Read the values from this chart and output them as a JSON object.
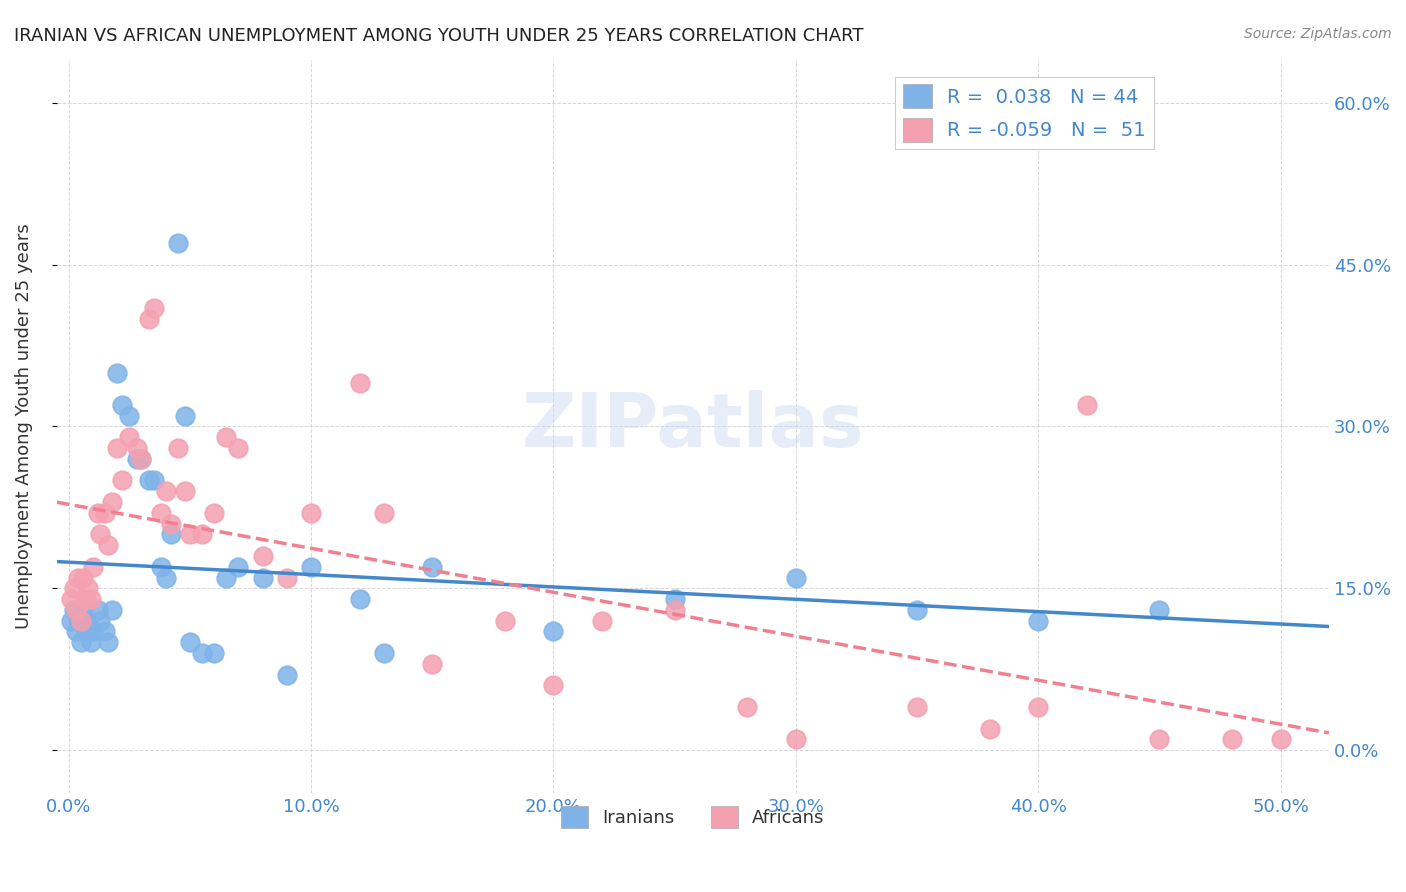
{
  "title": "IRANIAN VS AFRICAN UNEMPLOYMENT AMONG YOUTH UNDER 25 YEARS CORRELATION CHART",
  "source": "Source: ZipAtlas.com",
  "ylabel": "Unemployment Among Youth under 25 years",
  "xlabel_ticks": [
    "0.0%",
    "10.0%",
    "20.0%",
    "30.0%",
    "40.0%",
    "50.0%"
  ],
  "xlabel_vals": [
    0.0,
    0.1,
    0.2,
    0.3,
    0.4,
    0.5
  ],
  "ylabel_ticks": [
    "0.0%",
    "15.0%",
    "30.0%",
    "45.0%",
    "60.0%"
  ],
  "ylabel_vals": [
    0.0,
    0.15,
    0.3,
    0.45,
    0.6
  ],
  "xlim": [
    -0.005,
    0.52
  ],
  "ylim": [
    -0.04,
    0.64
  ],
  "iranians_color": "#7fb3e8",
  "africans_color": "#f4a0b0",
  "iranians_R": 0.038,
  "iranians_N": 44,
  "africans_R": -0.059,
  "africans_N": 51,
  "legend_label_iranians": "Iranians",
  "legend_label_africans": "Africans",
  "iranians_x": [
    0.001,
    0.002,
    0.003,
    0.004,
    0.005,
    0.006,
    0.007,
    0.008,
    0.009,
    0.01,
    0.012,
    0.013,
    0.015,
    0.016,
    0.018,
    0.02,
    0.022,
    0.025,
    0.028,
    0.03,
    0.033,
    0.035,
    0.038,
    0.04,
    0.042,
    0.045,
    0.048,
    0.05,
    0.055,
    0.06,
    0.065,
    0.07,
    0.08,
    0.09,
    0.1,
    0.12,
    0.13,
    0.15,
    0.2,
    0.25,
    0.3,
    0.35,
    0.4,
    0.45
  ],
  "iranians_y": [
    0.12,
    0.13,
    0.11,
    0.12,
    0.1,
    0.13,
    0.11,
    0.12,
    0.1,
    0.11,
    0.13,
    0.12,
    0.11,
    0.1,
    0.13,
    0.35,
    0.32,
    0.31,
    0.27,
    0.27,
    0.25,
    0.25,
    0.17,
    0.16,
    0.2,
    0.47,
    0.31,
    0.1,
    0.09,
    0.09,
    0.16,
    0.17,
    0.16,
    0.07,
    0.17,
    0.14,
    0.09,
    0.17,
    0.11,
    0.14,
    0.16,
    0.13,
    0.12,
    0.13
  ],
  "africans_x": [
    0.001,
    0.002,
    0.003,
    0.004,
    0.005,
    0.006,
    0.007,
    0.008,
    0.009,
    0.01,
    0.012,
    0.013,
    0.015,
    0.016,
    0.018,
    0.02,
    0.022,
    0.025,
    0.028,
    0.03,
    0.033,
    0.035,
    0.038,
    0.04,
    0.042,
    0.045,
    0.048,
    0.05,
    0.055,
    0.06,
    0.065,
    0.07,
    0.08,
    0.09,
    0.1,
    0.12,
    0.13,
    0.15,
    0.18,
    0.2,
    0.22,
    0.25,
    0.28,
    0.3,
    0.35,
    0.38,
    0.4,
    0.42,
    0.45,
    0.48,
    0.5
  ],
  "africans_y": [
    0.14,
    0.15,
    0.13,
    0.16,
    0.12,
    0.16,
    0.14,
    0.15,
    0.14,
    0.17,
    0.22,
    0.2,
    0.22,
    0.19,
    0.23,
    0.28,
    0.25,
    0.29,
    0.28,
    0.27,
    0.4,
    0.41,
    0.22,
    0.24,
    0.21,
    0.28,
    0.24,
    0.2,
    0.2,
    0.22,
    0.29,
    0.28,
    0.18,
    0.16,
    0.22,
    0.34,
    0.22,
    0.08,
    0.12,
    0.06,
    0.12,
    0.13,
    0.04,
    0.01,
    0.04,
    0.02,
    0.04,
    0.32,
    0.01,
    0.01,
    0.01
  ],
  "watermark": "ZIPatlas",
  "background_color": "#ffffff",
  "grid_color": "#cccccc",
  "title_color": "#222222",
  "tick_label_color": "#4488cc",
  "right_tick_color": "#4488cc"
}
